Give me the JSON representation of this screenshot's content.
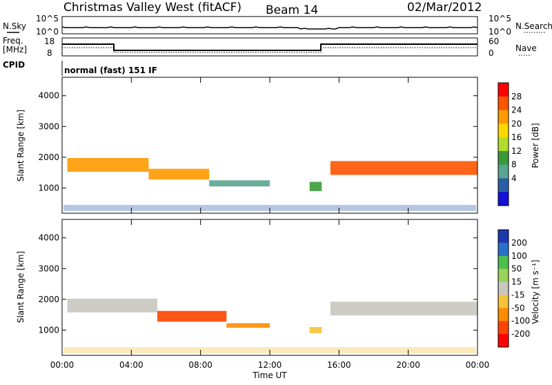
{
  "header": {
    "radar": "Christmas Valley West (fitACF)",
    "beam": "Beam 14",
    "date": "02/Mar/2012"
  },
  "strip": {
    "nsky_label": "N.Sky",
    "nsky_ticks": [
      "10^5",
      "10^0"
    ],
    "nsearch_label": "N.Search",
    "nsearch_ticks": [
      "10^5",
      "10^0"
    ],
    "freq_label": "Freq.",
    "freq_unit": "[MHz]",
    "freq_ticks": [
      "18",
      "8"
    ],
    "nave_label": "Nave",
    "nave_ticks": [
      "60",
      "0"
    ],
    "cpid_label": "CPID",
    "cpid_value": "normal (fast) 151 IF"
  },
  "chart_data": [
    {
      "type": "heatmap",
      "name": "power",
      "ylabel": "Slant Range [km]",
      "yticks": [
        "4000",
        "3000",
        "2000",
        "1000"
      ],
      "ylim": [
        180,
        4600
      ],
      "xlim": [
        0,
        24
      ],
      "colorbar": {
        "label": "Power [dB]",
        "ticks": [
          "28",
          "24",
          "20",
          "16",
          "12",
          "8",
          "4"
        ],
        "colors": [
          "#ff0000",
          "#ff5500",
          "#ff9a00",
          "#ffd700",
          "#b0dd2a",
          "#3a9a3a",
          "#5aa58f",
          "#2a5fa8",
          "#1212d8"
        ]
      },
      "regions": [
        {
          "t0": 0.3,
          "t1": 5.0,
          "r_center": 1750,
          "r_width": 450,
          "level": 6
        },
        {
          "t0": 5.0,
          "t1": 8.5,
          "r_center": 1450,
          "r_width": 350,
          "level": 6
        },
        {
          "t0": 8.5,
          "t1": 12.0,
          "r_center": 1150,
          "r_width": 200,
          "level": 2
        },
        {
          "t0": 14.3,
          "t1": 15.0,
          "r_center": 1050,
          "r_width": 300,
          "level": 3
        },
        {
          "t0": 15.5,
          "t1": 24.0,
          "r_center": 1650,
          "r_width": 450,
          "level": 7
        }
      ]
    },
    {
      "type": "heatmap",
      "name": "velocity",
      "ylabel": "Slant Range [km]",
      "yticks": [
        "4000",
        "3000",
        "2000",
        "1000"
      ],
      "xlabel": "Time UT",
      "xticks": [
        "00:00",
        "04:00",
        "08:00",
        "12:00",
        "16:00",
        "20:00",
        "00:00"
      ],
      "ylim": [
        180,
        4600
      ],
      "xlim": [
        0,
        24
      ],
      "colorbar": {
        "label": "Velocity [m s⁻¹]",
        "ticks": [
          "200",
          "100",
          "50",
          "15",
          "-15",
          "-50",
          "-100",
          "-200"
        ],
        "colors": [
          "#1c38b0",
          "#2a6fc8",
          "#4dbf4d",
          "#9ad25a",
          "#c8c8c0",
          "#f5c23a",
          "#ff8c00",
          "#ff4400",
          "#ff0000"
        ]
      },
      "regions": [
        {
          "t0": 0.3,
          "t1": 5.5,
          "r_center": 1800,
          "r_width": 450,
          "velocity": 0
        },
        {
          "t0": 5.5,
          "t1": 9.5,
          "r_center": 1450,
          "r_width": 350,
          "velocity": -200
        },
        {
          "t0": 9.5,
          "t1": 12.0,
          "r_center": 1150,
          "r_width": 150,
          "velocity": -80
        },
        {
          "t0": 14.3,
          "t1": 15.0,
          "r_center": 1000,
          "r_width": 200,
          "velocity": -40
        },
        {
          "t0": 15.5,
          "t1": 24.0,
          "r_center": 1700,
          "r_width": 450,
          "velocity": 0
        }
      ]
    }
  ]
}
